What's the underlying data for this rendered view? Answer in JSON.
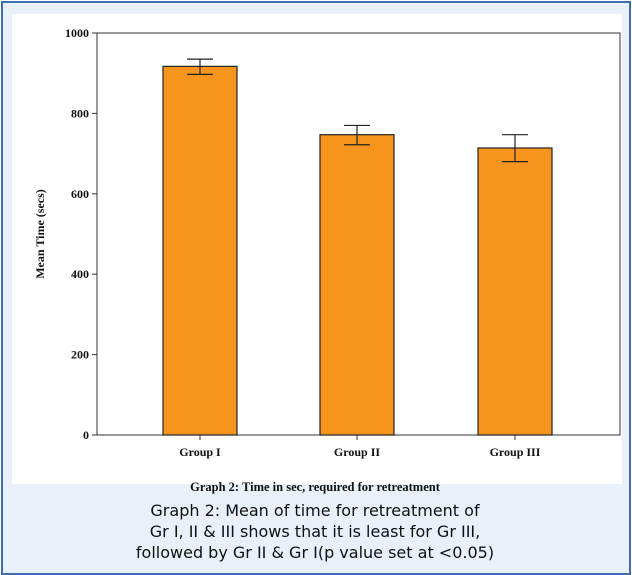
{
  "chart_data": {
    "type": "bar",
    "title": "",
    "xlabel": "",
    "ylabel": "Mean Time (secs)",
    "ylim": [
      0,
      1000
    ],
    "yticks": [
      0,
      200,
      400,
      600,
      800,
      1000
    ],
    "categories": [
      "Group I",
      "Group II",
      "Group III"
    ],
    "values": [
      917,
      747,
      714
    ],
    "error_low": [
      897,
      722,
      680
    ],
    "error_high": [
      935,
      770,
      747
    ],
    "grid": false,
    "bar_color": "#f7941d",
    "bar_edge_color": "#222222"
  },
  "figure_caption": "Graph 2: Time in sec, required for retreatment",
  "description_lines": [
    "Graph 2: Mean of time for retreatment of",
    "Gr I, II & III shows that it is least for Gr III,",
    "followed by Gr II & Gr I(p value set at <0.05)"
  ],
  "colors": {
    "frame_border": "#3e6fb0",
    "frame_background": "#e9f0fa"
  }
}
